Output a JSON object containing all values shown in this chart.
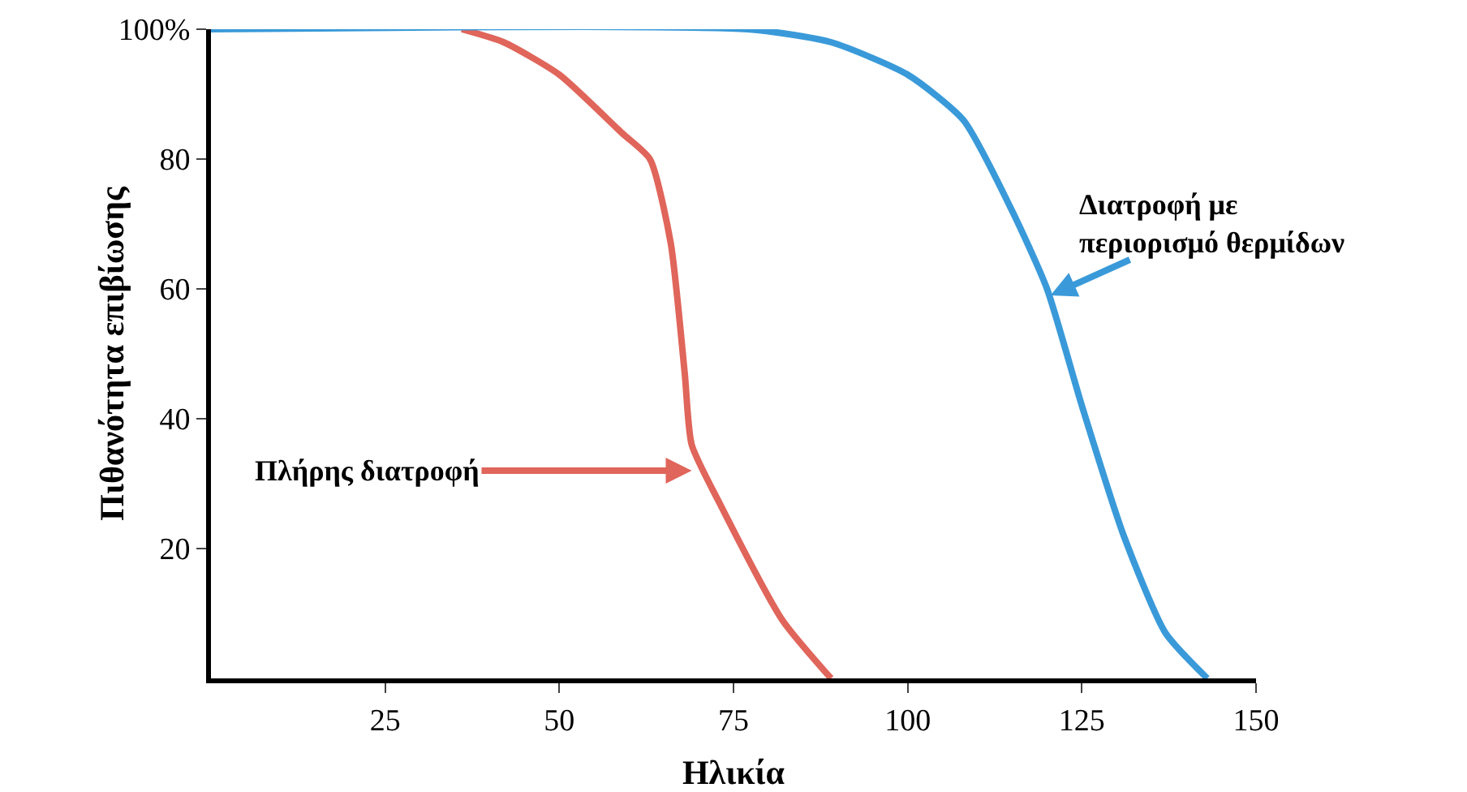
{
  "chart_data": {
    "type": "line",
    "xlabel": "Ηλικία",
    "ylabel": "Πιθανότητα επιβίωσης",
    "xlim": [
      0,
      150
    ],
    "ylim": [
      0,
      100
    ],
    "xticks": [
      25,
      50,
      75,
      100,
      125,
      150
    ],
    "yticks": [
      20,
      40,
      60,
      80,
      {
        "value": 100,
        "label": "100%"
      }
    ],
    "grid": false,
    "legend": false,
    "marker": "none",
    "line_style": "solid",
    "series": [
      {
        "color": "#e0655a",
        "x": [
          36,
          42,
          50,
          59,
          63,
          66,
          68,
          69,
          73,
          82,
          89
        ],
        "values": [
          100,
          98,
          93,
          84,
          80,
          67,
          47,
          36,
          27,
          9,
          0
        ]
      },
      {
        "color": "#3a9ad9",
        "x": [
          0,
          77,
          89,
          100,
          108,
          115,
          120,
          125,
          131,
          137,
          143
        ],
        "values": [
          100,
          100,
          98,
          93,
          86,
          72,
          60,
          42,
          22,
          7,
          0
        ]
      }
    ],
    "annotations": [
      {
        "text": "Πλήρης διατροφή",
        "x": 69,
        "y": 32
      },
      {
        "text": "Διατροφή με\nπεριορισμό θερμίδων",
        "x": 120.5,
        "y": 59
      }
    ]
  }
}
